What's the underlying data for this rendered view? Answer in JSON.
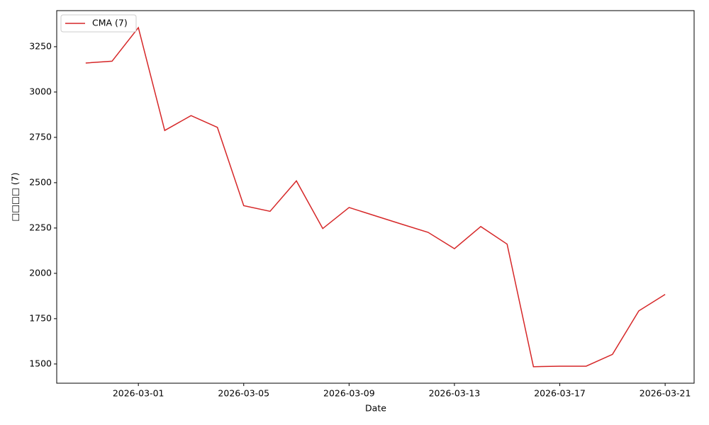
{
  "chart_data": {
    "type": "line",
    "xlabel": "Date",
    "ylabel": "□□□□ (7)",
    "x": [
      "2026-02-27",
      "2026-02-28",
      "2026-03-01",
      "2026-03-02",
      "2026-03-03",
      "2026-03-04",
      "2026-03-05",
      "2026-03-06",
      "2026-03-07",
      "2026-03-08",
      "2026-03-09",
      "2026-03-10",
      "2026-03-11",
      "2026-03-12",
      "2026-03-13",
      "2026-03-14",
      "2026-03-15",
      "2026-03-16",
      "2026-03-17",
      "2026-03-18",
      "2026-03-19",
      "2026-03-20",
      "2026-03-21"
    ],
    "series": [
      {
        "name": "CMA (7)",
        "color": "#d62728",
        "values": [
          3160,
          3170,
          3355,
          2788,
          2870,
          2805,
          2373,
          2342,
          2510,
          2247,
          2363,
          2317,
          2271,
          2226,
          2136,
          2258,
          2161,
          1485,
          1488,
          1488,
          1553,
          1793,
          1884
        ]
      }
    ],
    "xlim": [
      "2026-02-25T21:36:00Z",
      "2026-03-22T02:24:00Z"
    ],
    "xticks": [
      "2026-03-01",
      "2026-03-05",
      "2026-03-09",
      "2026-03-13",
      "2026-03-17",
      "2026-03-21"
    ],
    "ylim": [
      1394,
      3449
    ],
    "yticks": [
      1500,
      1750,
      2000,
      2250,
      2500,
      2750,
      3000,
      3250
    ],
    "grid": false,
    "legend": "upper left"
  }
}
